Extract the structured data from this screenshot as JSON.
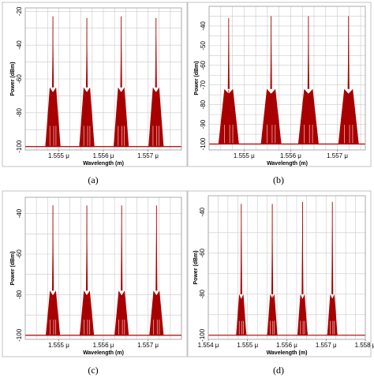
{
  "figure": {
    "panel_labels": [
      "(a)",
      "(b)",
      "(c)",
      "(d)"
    ]
  },
  "colors": {
    "trace": "#a80000",
    "grid": "#c9c9c9",
    "frame": "#9a9a9a",
    "outer": "#b5b5b5"
  },
  "chart_data": [
    {
      "id": "a",
      "type": "line",
      "xlabel": "Wavelength (m)",
      "ylabel": "Power (dBm)",
      "xlim": [
        1.55425,
        1.55775
      ],
      "ylim": [
        -102,
        -18
      ],
      "xticks": [
        {
          "v": 1.555,
          "label": "1.555 μ"
        },
        {
          "v": 1.556,
          "label": "1.556 μ"
        },
        {
          "v": 1.557,
          "label": "1.557 μ"
        }
      ],
      "yticks": [
        {
          "v": -20,
          "label": "-20"
        },
        {
          "v": -40,
          "label": "-40"
        },
        {
          "v": -60,
          "label": "-60"
        },
        {
          "v": -80,
          "label": "-80"
        },
        {
          "v": -100,
          "label": "-100"
        }
      ],
      "grid": true,
      "floor": -100,
      "peaks": [
        {
          "x": 1.55487,
          "peak": -23,
          "base_halfwidth": 0.00017,
          "sideband": -65
        },
        {
          "x": 1.55563,
          "peak": -24,
          "base_halfwidth": 0.00017,
          "sideband": -65
        },
        {
          "x": 1.5564,
          "peak": -23,
          "base_halfwidth": 0.00017,
          "sideband": -65
        },
        {
          "x": 1.55718,
          "peak": -24,
          "base_halfwidth": 0.00017,
          "sideband": -65
        }
      ]
    },
    {
      "id": "b",
      "type": "line",
      "xlabel": "Wavelength (m)",
      "ylabel": "Power (dBm)",
      "xlim": [
        1.55425,
        1.5576
      ],
      "ylim": [
        -103,
        -30
      ],
      "xticks": [
        {
          "v": 1.555,
          "label": "1.555 μ"
        },
        {
          "v": 1.556,
          "label": "1.556 μ"
        },
        {
          "v": 1.557,
          "label": "1.557 μ"
        }
      ],
      "yticks": [
        {
          "v": -40,
          "label": "-40"
        },
        {
          "v": -50,
          "label": "-50"
        },
        {
          "v": -60,
          "label": "-60"
        },
        {
          "v": -70,
          "label": "-70"
        },
        {
          "v": -80,
          "label": "-80"
        },
        {
          "v": -90,
          "label": "-90"
        },
        {
          "v": -100,
          "label": "-100"
        }
      ],
      "grid": true,
      "floor": -100,
      "peaks": [
        {
          "x": 1.55467,
          "peak": -36,
          "base_halfwidth": 0.00022,
          "sideband": -72
        },
        {
          "x": 1.55558,
          "peak": -35,
          "base_halfwidth": 0.00022,
          "sideband": -72
        },
        {
          "x": 1.55638,
          "peak": -35,
          "base_halfwidth": 0.00022,
          "sideband": -72
        },
        {
          "x": 1.55724,
          "peak": -35,
          "base_halfwidth": 0.00022,
          "sideband": -72
        }
      ]
    },
    {
      "id": "c",
      "type": "line",
      "xlabel": "Wavelength (m)",
      "ylabel": "Power (dBm)",
      "xlim": [
        1.55425,
        1.55775
      ],
      "ylim": [
        -102,
        -32
      ],
      "xticks": [
        {
          "v": 1.555,
          "label": "1.555 μ"
        },
        {
          "v": 1.556,
          "label": "1.556 μ"
        },
        {
          "v": 1.557,
          "label": "1.557 μ"
        }
      ],
      "yticks": [
        {
          "v": -40,
          "label": "-40"
        },
        {
          "v": -60,
          "label": "-60"
        },
        {
          "v": -80,
          "label": "-80"
        },
        {
          "v": -100,
          "label": "-100"
        }
      ],
      "grid": true,
      "floor": -100,
      "peaks": [
        {
          "x": 1.55487,
          "peak": -36,
          "base_halfwidth": 0.00016,
          "sideband": -78
        },
        {
          "x": 1.55563,
          "peak": -36,
          "base_halfwidth": 0.00016,
          "sideband": -78
        },
        {
          "x": 1.55641,
          "peak": -36,
          "base_halfwidth": 0.00016,
          "sideband": -78
        },
        {
          "x": 1.55719,
          "peak": -36,
          "base_halfwidth": 0.00016,
          "sideband": -78
        }
      ]
    },
    {
      "id": "d",
      "type": "line",
      "xlabel": "Wavelength (m)",
      "ylabel": "Power (dBm)",
      "xlim": [
        1.554,
        1.558
      ],
      "ylim": [
        -102,
        -32
      ],
      "xticks": [
        {
          "v": 1.554,
          "label": "1.554 μ"
        },
        {
          "v": 1.555,
          "label": "1.555 μ"
        },
        {
          "v": 1.556,
          "label": "1.556 μ"
        },
        {
          "v": 1.557,
          "label": "1.557 μ"
        },
        {
          "v": 1.558,
          "label": "1.558 μ"
        }
      ],
      "yticks": [
        {
          "v": -40,
          "label": "-40"
        },
        {
          "v": -60,
          "label": "-60"
        },
        {
          "v": -80,
          "label": "-80"
        },
        {
          "v": -100,
          "label": "-100"
        }
      ],
      "grid": true,
      "floor": -100,
      "peaks": [
        {
          "x": 1.55484,
          "peak": -36,
          "base_halfwidth": 0.00013,
          "sideband": -80
        },
        {
          "x": 1.55563,
          "peak": -36,
          "base_halfwidth": 0.00013,
          "sideband": -80
        },
        {
          "x": 1.5564,
          "peak": -35,
          "base_halfwidth": 0.00013,
          "sideband": -80
        },
        {
          "x": 1.55716,
          "peak": -35,
          "base_halfwidth": 0.00013,
          "sideband": -80
        }
      ]
    }
  ]
}
